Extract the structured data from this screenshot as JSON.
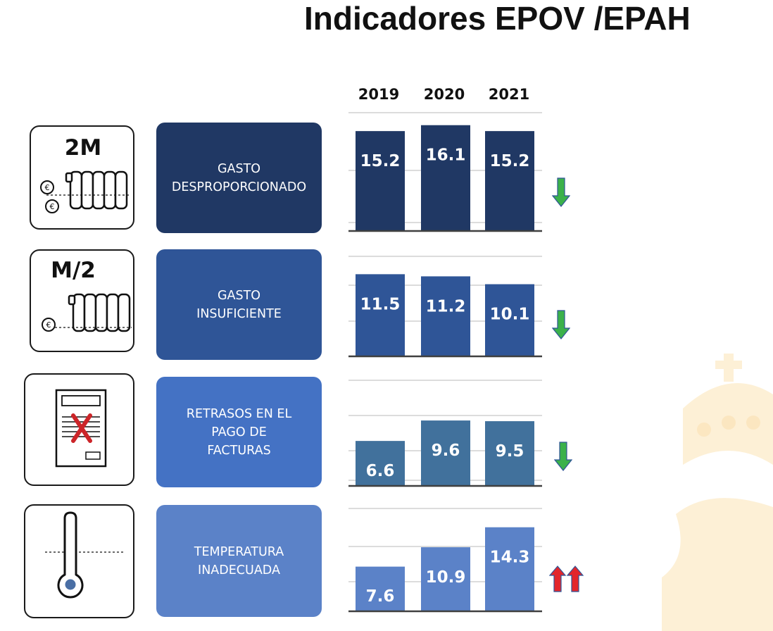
{
  "title": "Indicadores EPOV /EPAH",
  "years": [
    "2019",
    "2020",
    "2021"
  ],
  "chart_data": [
    {
      "type": "bar",
      "title": "GASTO\nDESPROPORCIONADO",
      "icon_label": "2M",
      "icon": "radiator-two-coins-icon",
      "categories": [
        "2019",
        "2020",
        "2021"
      ],
      "values": [
        15.2,
        16.1,
        15.2
      ],
      "ylim": [
        0,
        18
      ],
      "bar_color": "#203864",
      "trend": "down"
    },
    {
      "type": "bar",
      "title": "GASTO\nINSUFICIENTE",
      "icon_label": "M/2",
      "icon": "radiator-one-coin-icon",
      "categories": [
        "2019",
        "2020",
        "2021"
      ],
      "values": [
        11.5,
        11.2,
        10.1
      ],
      "ylim": [
        0,
        14
      ],
      "bar_color": "#2f5597",
      "trend": "down"
    },
    {
      "type": "bar",
      "title": "RETRASOS EN EL\nPAGO DE\nFACTURAS",
      "icon_label": "",
      "icon": "unpaid-bill-icon",
      "categories": [
        "2019",
        "2020",
        "2021"
      ],
      "values": [
        6.6,
        9.6,
        9.5
      ],
      "ylim": [
        0,
        15.5
      ],
      "bar_color": "#41719c",
      "trend": "down"
    },
    {
      "type": "bar",
      "title": "TEMPERATURA\nINADECUADA",
      "icon_label": "",
      "icon": "thermometer-icon",
      "categories": [
        "2019",
        "2020",
        "2021"
      ],
      "values": [
        7.6,
        10.9,
        14.3
      ],
      "ylim": [
        0,
        17.5
      ],
      "bar_color": "#5b82c8",
      "trend": "up-strong"
    }
  ],
  "colors": {
    "label_boxes": [
      "#203864",
      "#2f5597",
      "#4472c4",
      "#5b82c8"
    ],
    "arrow_down": "#3bb14a",
    "arrow_up": "#e3262b",
    "arrow_outline": "#2f5597",
    "watermark": "#fdf0d6"
  }
}
